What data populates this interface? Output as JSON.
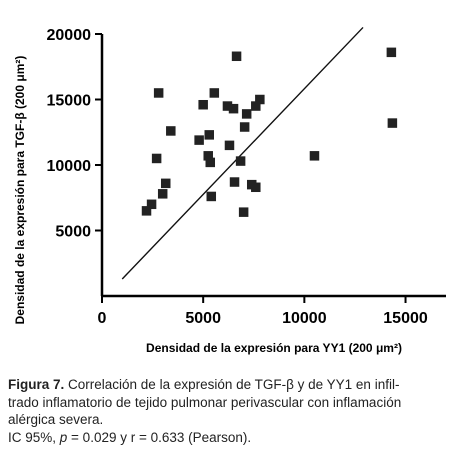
{
  "chart_data": {
    "type": "scatter",
    "title": "",
    "xlabel_prefix": "Densidad de la expresión para YY1 (200 ",
    "xlabel_unit": "μm²",
    "xlabel_suffix": ")",
    "ylabel_prefix": "Densidad de la expresión para TGF-β (200 ",
    "ylabel_unit": "μm²",
    "ylabel_suffix": ")",
    "xlim": [
      0,
      17000
    ],
    "ylim": [
      0,
      20000
    ],
    "xticks": [
      0,
      5000,
      10000,
      15000
    ],
    "xtick_labels": [
      "0",
      "5000",
      "10000",
      "15000"
    ],
    "yticks": [
      5000,
      10000,
      15000,
      20000
    ],
    "ytick_labels": [
      "5000",
      "10000",
      "15000",
      "20000"
    ],
    "grid": false,
    "marker": "square",
    "marker_color": "#222222",
    "points": [
      {
        "x": 2200,
        "y": 6500
      },
      {
        "x": 2450,
        "y": 7000
      },
      {
        "x": 2700,
        "y": 10500
      },
      {
        "x": 2800,
        "y": 15500
      },
      {
        "x": 3000,
        "y": 7800
      },
      {
        "x": 3150,
        "y": 8600
      },
      {
        "x": 3400,
        "y": 12600
      },
      {
        "x": 4800,
        "y": 11900
      },
      {
        "x": 5000,
        "y": 14600
      },
      {
        "x": 5250,
        "y": 10700
      },
      {
        "x": 5300,
        "y": 12300
      },
      {
        "x": 5350,
        "y": 10200
      },
      {
        "x": 5400,
        "y": 7600
      },
      {
        "x": 5550,
        "y": 15500
      },
      {
        "x": 6200,
        "y": 14500
      },
      {
        "x": 6300,
        "y": 11500
      },
      {
        "x": 6500,
        "y": 14300
      },
      {
        "x": 6550,
        "y": 8700
      },
      {
        "x": 6650,
        "y": 18300
      },
      {
        "x": 6850,
        "y": 10300
      },
      {
        "x": 7000,
        "y": 6400
      },
      {
        "x": 7050,
        "y": 12900
      },
      {
        "x": 7150,
        "y": 13900
      },
      {
        "x": 7400,
        "y": 8500
      },
      {
        "x": 7600,
        "y": 8300
      },
      {
        "x": 7600,
        "y": 14500
      },
      {
        "x": 7800,
        "y": 15000
      },
      {
        "x": 10500,
        "y": 10700
      },
      {
        "x": 14300,
        "y": 18600
      },
      {
        "x": 14350,
        "y": 13200
      }
    ],
    "trendline": {
      "x1": 1000,
      "y1": 1300,
      "x2": 12900,
      "y2": 20500
    }
  },
  "caption": {
    "figure_label": "Figura 7.",
    "line1": " Correlación de la expresión de TGF-β y de YY1 en infil-",
    "line2": "trado inflamatorio de tejido pulmonar perivascular con inflamación",
    "line3": "alérgica severa.",
    "line4_prefix": "IC 95%, ",
    "line4_p": "p",
    "line4_suffix": " = 0.029 y r = 0.633 (Pearson)."
  }
}
